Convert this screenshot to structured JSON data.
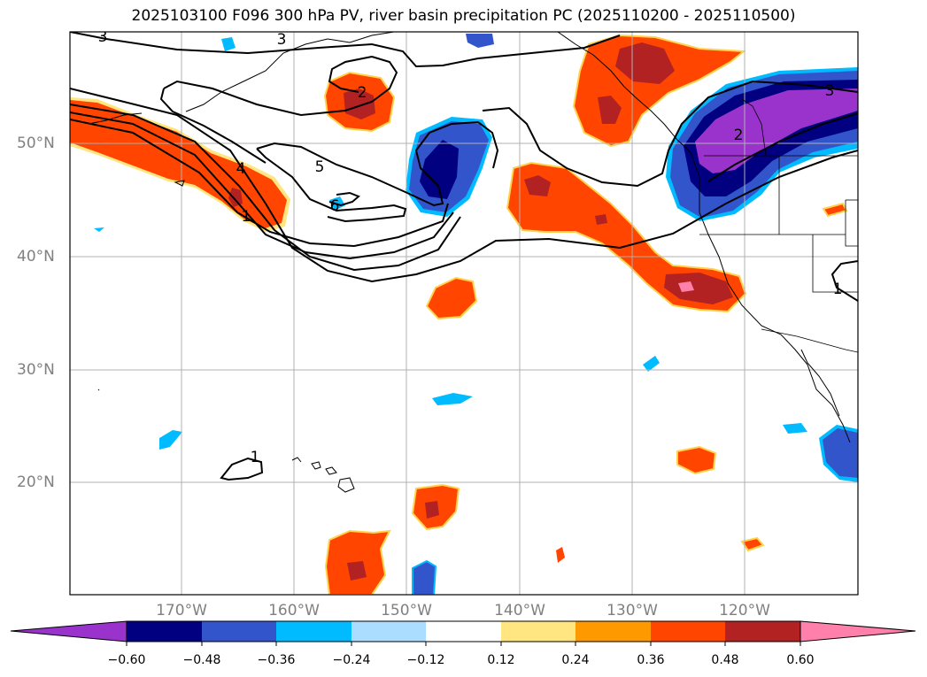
{
  "title": "2025103100 F096 300 hPa PV, river basin precipitation PC (2025110200 - 2025110500)",
  "lat_labels": [
    "50°N",
    "40°N",
    "30°N",
    "20°N"
  ],
  "lon_labels": [
    "170°W",
    "160°W",
    "150°W",
    "140°W",
    "130°W",
    "120°W"
  ],
  "contour_labels": [
    "3",
    "3",
    "2",
    "5",
    "4",
    "1",
    "6",
    "3",
    "2",
    "1",
    "1"
  ],
  "colorbar": {
    "ticks": [
      "−0.60",
      "−0.48",
      "−0.36",
      "−0.24",
      "−0.12",
      "0.12",
      "0.24",
      "0.36",
      "0.48",
      "0.60"
    ],
    "colors": [
      "#9933cc",
      "#000080",
      "#3355cc",
      "#00bbff",
      "#aaddff",
      "#ffffff",
      "#ffe680",
      "#ff9900",
      "#ff4500",
      "#b22222",
      "#ff80aa"
    ]
  },
  "colors": {
    "grid": "#b0b0b0",
    "coast": "#000000",
    "pv_contour": "#000000",
    "label_gray": "#808080"
  }
}
